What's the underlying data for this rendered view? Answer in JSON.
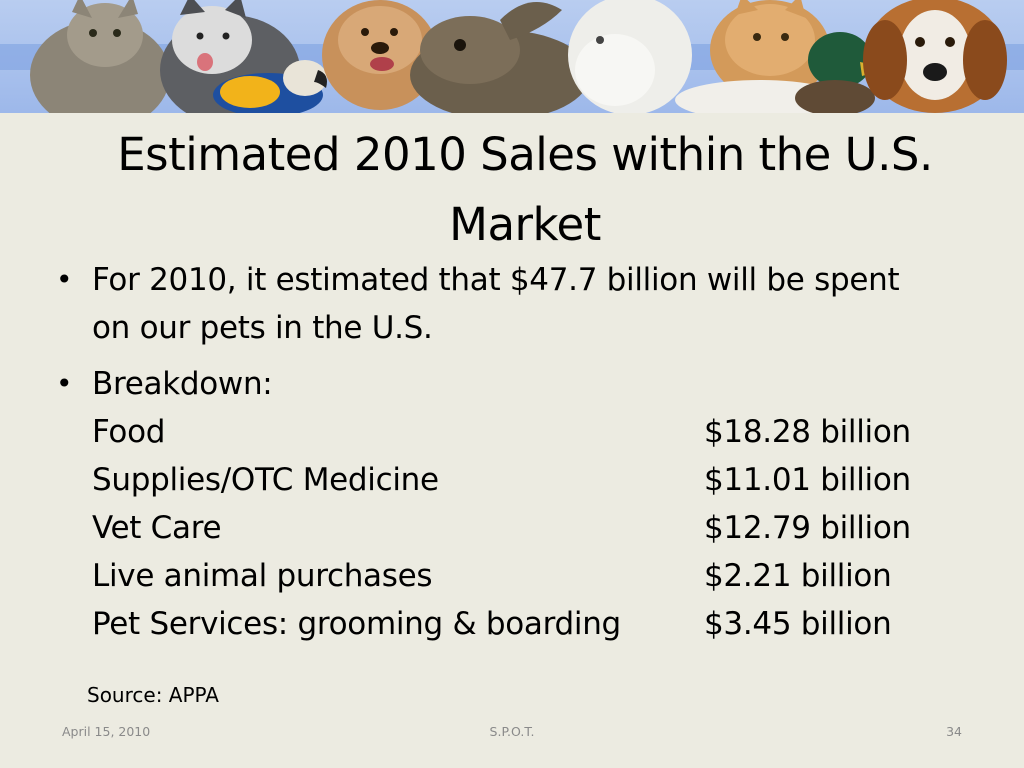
{
  "banner": {
    "image_description": "pets-collage",
    "animals": [
      "cat",
      "husky",
      "parrot",
      "terrier",
      "rabbit",
      "horse",
      "orange-cat",
      "duck",
      "beagle"
    ]
  },
  "slide": {
    "title_line1": "Estimated 2010 Sales within the U.S.",
    "title_line2": "Market",
    "bullet1_line1": "For 2010, it estimated that $47.7 billion will be spent",
    "bullet1_line2": "on our pets in the U.S.",
    "bullet2_heading": "Breakdown:",
    "breakdown": [
      {
        "category": "Food",
        "amount": "$18.28 billion"
      },
      {
        "category": "Supplies/OTC Medicine",
        "amount": "$11.01 billion"
      },
      {
        "category": "Vet Care",
        "amount": "$12.79 billion"
      },
      {
        "category": "Live animal purchases",
        "amount": "$2.21 billion"
      },
      {
        "category": "Pet Services: grooming & boarding",
        "amount": "$3.45 billion"
      }
    ],
    "source": "Source: APPA"
  },
  "footer": {
    "date": "April 15, 2010",
    "center": "S.P.O.T.",
    "page": "34"
  },
  "colors": {
    "background": "#ecebe1",
    "banner": "#9db8ea",
    "footer_text": "#8a8a8a"
  }
}
